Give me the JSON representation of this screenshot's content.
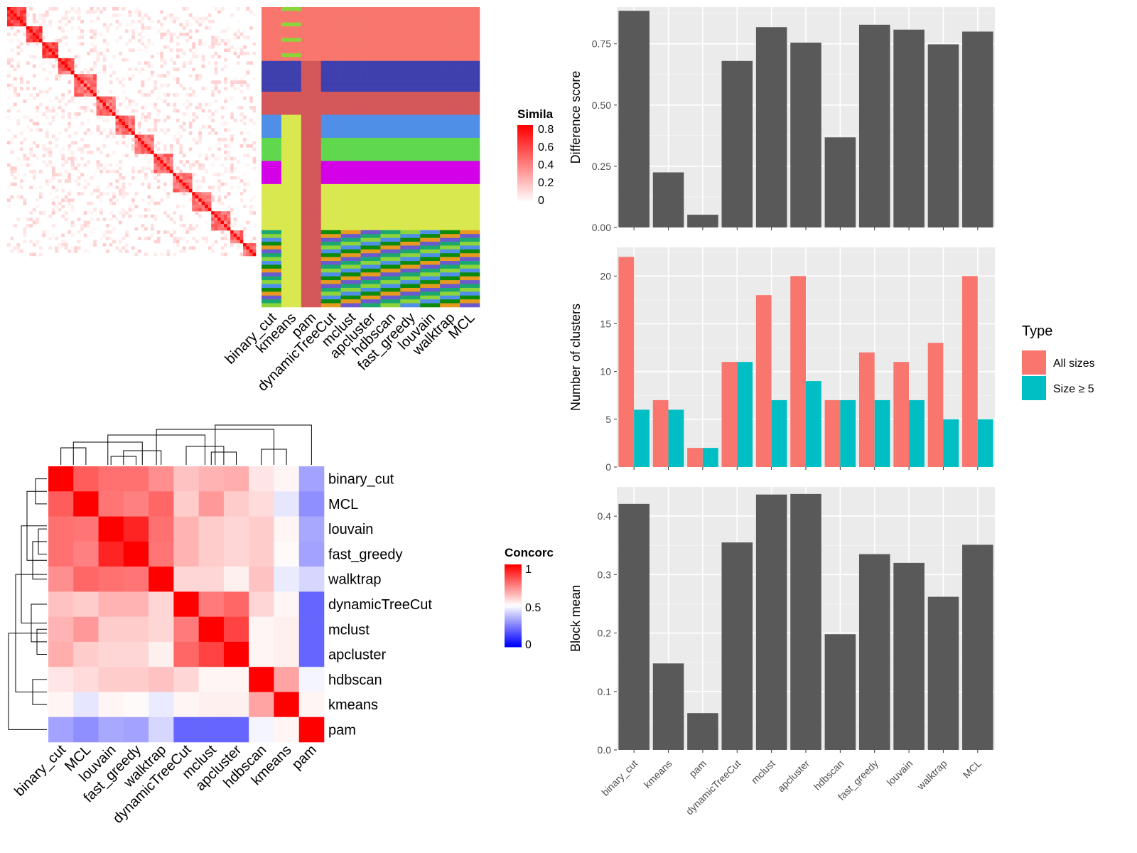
{
  "methods_order_a": [
    "binary_cut",
    "kmeans",
    "pam",
    "dynamicTreeCut",
    "mclust",
    "apcluster",
    "hdbscan",
    "fast_greedy",
    "louvain",
    "walktrap",
    "MCL"
  ],
  "methods_order_b": [
    "binary_cut",
    "MCL",
    "louvain",
    "fast_greedy",
    "walktrap",
    "dynamicTreeCut",
    "mclust",
    "apcluster",
    "hdbscan",
    "kmeans",
    "pam"
  ],
  "legend_similarity": {
    "title": "Simila",
    "ticks": [
      "0.8",
      "0.6",
      "0.4",
      "0.2",
      "0"
    ],
    "colors": [
      "#ffffff",
      "#ff0000"
    ]
  },
  "legend_concordance": {
    "title": "Concorc",
    "ticks": [
      "1",
      "0.5",
      "0"
    ],
    "colors": [
      "#0000ff",
      "#ffffff",
      "#ff0000"
    ]
  },
  "legend_type": {
    "title": "Type",
    "items": [
      {
        "label": "All sizes",
        "color": "#F8766D"
      },
      {
        "label": "Size ≥ 5",
        "color": "#00BFC4"
      }
    ]
  },
  "colors": {
    "bar_gray": "#595959",
    "panel_bg": "#EBEBEB",
    "grid": "#ffffff",
    "red": "#ff0000",
    "blue": "#0000ff"
  },
  "chart_data": [
    {
      "type": "bar",
      "categories": [
        "binary_cut",
        "kmeans",
        "pam",
        "dynamicTreeCut",
        "mclust",
        "apcluster",
        "hdbscan",
        "fast_greedy",
        "louvain",
        "walktrap",
        "MCL"
      ],
      "values": [
        0.885,
        0.225,
        0.052,
        0.68,
        0.818,
        0.755,
        0.368,
        0.828,
        0.808,
        0.748,
        0.8
      ],
      "ylabel": "Difference score",
      "ylim": [
        0,
        0.9
      ],
      "yticks": [
        "0.00",
        "0.25",
        "0.50",
        "0.75"
      ]
    },
    {
      "type": "bar",
      "categories": [
        "binary_cut",
        "kmeans",
        "pam",
        "dynamicTreeCut",
        "mclust",
        "apcluster",
        "hdbscan",
        "fast_greedy",
        "louvain",
        "walktrap",
        "MCL"
      ],
      "series": [
        {
          "name": "All sizes",
          "values": [
            22,
            7,
            2,
            11,
            18,
            20,
            7,
            12,
            11,
            13,
            20
          ]
        },
        {
          "name": "Size ≥ 5",
          "values": [
            6,
            6,
            2,
            11,
            7,
            9,
            7,
            7,
            7,
            5,
            5
          ]
        }
      ],
      "ylabel": "Number of clusters",
      "ylim": [
        0,
        23
      ],
      "yticks": [
        "0",
        "5",
        "10",
        "15",
        "20"
      ],
      "legend": "right"
    },
    {
      "type": "bar",
      "categories": [
        "binary_cut",
        "kmeans",
        "pam",
        "dynamicTreeCut",
        "mclust",
        "apcluster",
        "hdbscan",
        "fast_greedy",
        "louvain",
        "walktrap",
        "MCL"
      ],
      "values": [
        0.421,
        0.148,
        0.063,
        0.355,
        0.437,
        0.438,
        0.198,
        0.335,
        0.32,
        0.262,
        0.351
      ],
      "ylabel": "Block mean",
      "ylim": [
        0,
        0.45
      ],
      "yticks": [
        "0.0",
        "0.1",
        "0.2",
        "0.3",
        "0.4"
      ]
    },
    {
      "type": "heatmap",
      "rows": [
        "binary_cut",
        "MCL",
        "louvain",
        "fast_greedy",
        "walktrap",
        "dynamicTreeCut",
        "mclust",
        "apcluster",
        "hdbscan",
        "kmeans",
        "pam"
      ],
      "columns": [
        "binary_cut",
        "MCL",
        "louvain",
        "fast_greedy",
        "walktrap",
        "dynamicTreeCut",
        "mclust",
        "apcluster",
        "hdbscan",
        "kmeans",
        "pam"
      ],
      "values": [
        [
          1.0,
          0.82,
          0.78,
          0.78,
          0.72,
          0.62,
          0.65,
          0.66,
          0.55,
          0.52,
          0.32
        ],
        [
          0.82,
          1.0,
          0.77,
          0.75,
          0.8,
          0.6,
          0.7,
          0.6,
          0.57,
          0.45,
          0.28
        ],
        [
          0.78,
          0.77,
          1.0,
          0.93,
          0.78,
          0.65,
          0.6,
          0.58,
          0.6,
          0.52,
          0.33
        ],
        [
          0.78,
          0.75,
          0.93,
          1.0,
          0.77,
          0.65,
          0.6,
          0.58,
          0.6,
          0.51,
          0.32
        ],
        [
          0.72,
          0.8,
          0.78,
          0.77,
          1.0,
          0.58,
          0.58,
          0.53,
          0.62,
          0.46,
          0.42
        ],
        [
          0.62,
          0.6,
          0.65,
          0.65,
          0.58,
          1.0,
          0.76,
          0.8,
          0.58,
          0.52,
          0.2
        ],
        [
          0.65,
          0.7,
          0.6,
          0.6,
          0.58,
          0.76,
          1.0,
          0.87,
          0.52,
          0.53,
          0.2
        ],
        [
          0.66,
          0.6,
          0.58,
          0.58,
          0.53,
          0.8,
          0.87,
          1.0,
          0.52,
          0.53,
          0.2
        ],
        [
          0.55,
          0.57,
          0.6,
          0.6,
          0.62,
          0.58,
          0.52,
          0.52,
          1.0,
          0.68,
          0.48
        ],
        [
          0.52,
          0.45,
          0.52,
          0.51,
          0.46,
          0.52,
          0.53,
          0.53,
          0.68,
          1.0,
          0.52
        ],
        [
          0.32,
          0.28,
          0.33,
          0.32,
          0.42,
          0.2,
          0.2,
          0.2,
          0.48,
          0.52,
          1.0
        ]
      ],
      "scale": [
        0,
        0.5,
        1
      ]
    }
  ]
}
